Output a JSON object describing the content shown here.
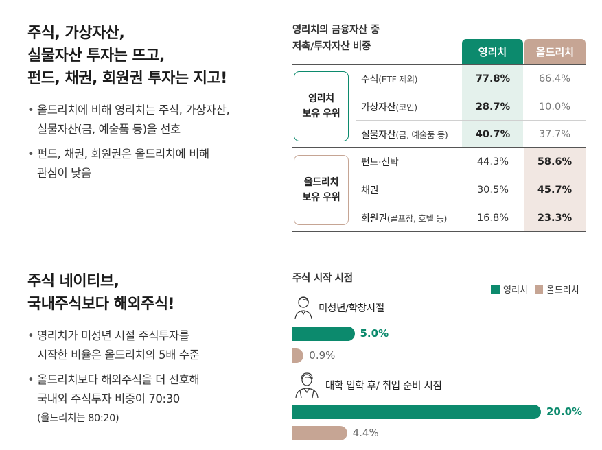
{
  "section1": {
    "headline": [
      "주식, 가상자산,",
      "실물자산 투자는 뜨고,",
      "펀드, 채권, 회원권 투자는 지고!"
    ],
    "bullets": [
      [
        "올드리치에 비해 영리치는 주식, 가상자산,",
        "실물자산(금, 예술품 등)을 선호"
      ],
      [
        "펀드, 채권, 회원권은 올드리치에 비해",
        "관심이 낮음"
      ]
    ]
  },
  "section2": {
    "headline": [
      "주식 네이티브,",
      "국내주식보다 해외주식!"
    ],
    "bullets": [
      [
        "영리치가 미성년 시절 주식투자를",
        "시작한 비율은 올드리치의 5배 수준"
      ],
      [
        "올드리치보다 해외주식을 더 선호해",
        "국내외 주식투자 비중이 70:30"
      ]
    ],
    "note": "(올드리치는 80:20)"
  },
  "colors": {
    "young": "#0c8a6d",
    "old": "#c6a594",
    "young_bg": "#e4f1ec",
    "old_bg": "#f1e7e2"
  },
  "chart_data": [
    {
      "type": "table",
      "title": "영리치의 금융자산 중 저축/투자자산 비중",
      "title_lines": [
        "영리치의 금융자산 중",
        "저축/투자자산 비중"
      ],
      "columns": [
        "영리치",
        "올드리치"
      ],
      "groups": [
        {
          "label": "영리치 보유 우위",
          "label_lines": [
            "영리치",
            "보유 우위"
          ],
          "rows": [
            {
              "name": "주식",
              "note": "(ETF 제외)",
              "values": [
                "77.8%",
                "66.4%"
              ]
            },
            {
              "name": "가상자산",
              "note": "(코인)",
              "values": [
                "28.7%",
                "10.0%"
              ]
            },
            {
              "name": "실물자산",
              "note": "(금, 예술품 등)",
              "values": [
                "40.7%",
                "37.7%"
              ]
            }
          ]
        },
        {
          "label": "올드리치 보유 우위",
          "label_lines": [
            "올드리치",
            "보유 우위"
          ],
          "rows": [
            {
              "name": "펀드·신탁",
              "note": "",
              "values": [
                "44.3%",
                "58.6%"
              ]
            },
            {
              "name": "채권",
              "note": "",
              "values": [
                "30.5%",
                "45.7%"
              ]
            },
            {
              "name": "회원권",
              "note": "(골프장, 호텔 등)",
              "values": [
                "16.8%",
                "23.3%"
              ]
            }
          ]
        }
      ]
    },
    {
      "type": "bar",
      "orientation": "horizontal",
      "title": "주식 시작 시점",
      "categories": [
        "미성년/학창시절",
        "대학 입학 후/ 취업 준비 시점"
      ],
      "series": [
        {
          "name": "영리치",
          "values": [
            5.0,
            20.0
          ],
          "labels": [
            "5.0%",
            "20.0%"
          ]
        },
        {
          "name": "올드리치",
          "values": [
            0.9,
            4.4
          ],
          "labels": [
            "0.9%",
            "4.4%"
          ]
        }
      ],
      "xlim": [
        0,
        20
      ],
      "legend": "top-right"
    }
  ]
}
